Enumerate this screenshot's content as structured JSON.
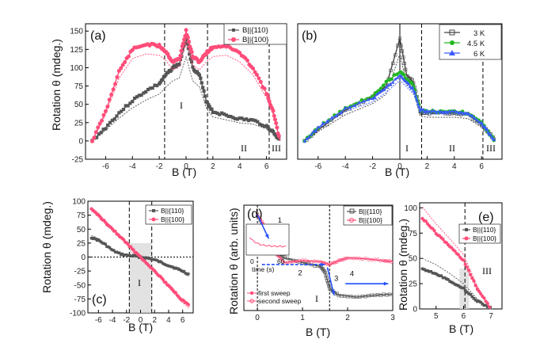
{
  "figure": {
    "panels": [
      {
        "id": "a",
        "label": "(a)",
        "xlabel": "B (T)",
        "ylabel": "Rotation θ (mdeg.)",
        "xlim": [
          -7.5,
          7.5
        ],
        "ylim": [
          -25,
          160
        ],
        "xticks": [
          -6,
          -4,
          -2,
          0,
          2,
          4,
          6
        ],
        "yticks": [
          -25,
          0,
          25,
          50,
          75,
          100,
          125,
          150
        ],
        "legend": [
          "B||{110}",
          "B||{100}"
        ],
        "regions": [
          "I",
          "II",
          "III"
        ],
        "vlines": [
          -1.6,
          1.6,
          6.2
        ]
      },
      {
        "id": "b",
        "label": "(b)",
        "xlabel": "B (T)",
        "ylabel": "",
        "xlim": [
          -7.5,
          7.5
        ],
        "ylim": [
          -25,
          160
        ],
        "xticks": [
          -6,
          -4,
          -2,
          0,
          2,
          4,
          6
        ],
        "legend": [
          "3 K",
          "4.5 K",
          "6 K"
        ],
        "regions": [
          "I",
          "II",
          "III"
        ],
        "vlines": [
          0,
          1.6,
          6.1
        ]
      },
      {
        "id": "c",
        "label": "(c)",
        "xlabel": "B (T)",
        "ylabel": "Rotation θ (mdeg.)",
        "xlim": [
          -7.5,
          7.5
        ],
        "ylim": [
          -100,
          100
        ],
        "xticks": [
          -6,
          -4,
          -2,
          0,
          2,
          4,
          6
        ],
        "yticks": [
          -100,
          -75,
          -50,
          -25,
          0,
          25,
          50,
          75,
          100
        ],
        "legend": [
          "B||{110}",
          "B||{100}"
        ],
        "regions": [
          "I"
        ]
      },
      {
        "id": "d",
        "label": "(d)",
        "xlabel": "B (T)",
        "ylabel": "Rotation θ (arb. units)",
        "xlim": [
          -0.3,
          3
        ],
        "xticks": [
          0,
          1,
          2,
          3
        ],
        "legend": [
          "B||{110}",
          "B||{100}"
        ],
        "legend2": [
          "first sweep",
          "second sweep"
        ],
        "steps": [
          "1",
          "2",
          "3",
          "4"
        ],
        "regions": [
          "I"
        ],
        "inset": {
          "xlabel": "time (s)",
          "xticks": [
            "0",
            "60"
          ]
        }
      },
      {
        "id": "e",
        "label": "(e)",
        "xlabel": "B (T)",
        "ylabel": "Rotation θ (mdeg.)",
        "xlim": [
          4.4,
          7.4
        ],
        "ylim": [
          0,
          105
        ],
        "xticks": [
          5,
          6,
          7
        ],
        "yticks": [
          0,
          25,
          50,
          75,
          100
        ],
        "legend": [
          "B||{110}",
          "B||{100}"
        ],
        "regions": [
          "III"
        ]
      }
    ]
  },
  "chart_data": [
    {
      "type": "line",
      "panel": "a",
      "title": "",
      "xlabel": "B (T)",
      "ylabel": "Rotation θ (mdeg.)",
      "series": [
        {
          "name": "B||{110}",
          "color": "#555555",
          "x": [
            -7,
            -6,
            -5,
            -4,
            -3,
            -2,
            -1.5,
            -1,
            -0.5,
            0,
            0.5,
            1,
            1.5,
            2,
            3,
            4,
            5,
            6,
            6.5,
            7
          ],
          "y": [
            0,
            18,
            38,
            55,
            68,
            78,
            90,
            100,
            105,
            140,
            100,
            90,
            55,
            40,
            35,
            30,
            28,
            20,
            12,
            0
          ]
        },
        {
          "name": "B||{100}",
          "color": "#ff4d7a",
          "x": [
            -7,
            -6,
            -5,
            -4,
            -3,
            -2,
            -1.5,
            -1,
            -0.5,
            0,
            0.5,
            1,
            1.5,
            2,
            3,
            4,
            5,
            6,
            6.5,
            7
          ],
          "y": [
            0,
            40,
            95,
            125,
            132,
            130,
            122,
            108,
            112,
            150,
            115,
            108,
            120,
            128,
            130,
            120,
            100,
            65,
            40,
            0
          ]
        }
      ],
      "regions": [
        "I",
        "II",
        "III"
      ]
    },
    {
      "type": "line",
      "panel": "b",
      "xlabel": "B (T)",
      "series": [
        {
          "name": "3 K",
          "color": "#444444",
          "x": [
            -7,
            -6,
            -4,
            -2,
            -1,
            0,
            0.5,
            1,
            1.5,
            2,
            3,
            4,
            5,
            6,
            6.5,
            7
          ],
          "y": [
            0,
            15,
            42,
            60,
            75,
            140,
            90,
            80,
            40,
            38,
            38,
            38,
            36,
            22,
            12,
            0
          ]
        },
        {
          "name": "4.5 K",
          "color": "#22b822",
          "x": [
            -7,
            -6,
            -4,
            -2,
            -1,
            0,
            0.5,
            1,
            1.5,
            2,
            3,
            4,
            5,
            6,
            6.5,
            7
          ],
          "y": [
            0,
            18,
            45,
            62,
            80,
            95,
            85,
            75,
            42,
            40,
            40,
            40,
            38,
            24,
            12,
            0
          ]
        },
        {
          "name": "6 K",
          "color": "#3b5bff",
          "x": [
            -7,
            -6,
            -4,
            -2,
            -1,
            0,
            0.5,
            1,
            1.5,
            2,
            3,
            4,
            5,
            6,
            6.5,
            7
          ],
          "y": [
            0,
            18,
            44,
            58,
            72,
            90,
            80,
            70,
            42,
            40,
            40,
            40,
            38,
            24,
            12,
            0
          ]
        }
      ]
    },
    {
      "type": "line",
      "panel": "c",
      "xlabel": "B (T)",
      "ylabel": "Rotation θ (mdeg.)",
      "series": [
        {
          "name": "B||{110}",
          "color": "#555555",
          "x": [
            -7,
            -6,
            -5,
            -4,
            -3,
            -2,
            -1,
            0,
            1,
            2,
            3,
            4,
            5,
            6,
            7
          ],
          "y": [
            35,
            30,
            22,
            12,
            6,
            3,
            2,
            0,
            -2,
            -5,
            -10,
            -15,
            -20,
            -25,
            -32
          ]
        },
        {
          "name": "B||{100}",
          "color": "#ff4d7a",
          "x": [
            -7,
            -6,
            -5,
            -4,
            -3,
            -2,
            -1,
            0,
            1,
            2,
            3,
            4,
            5,
            6,
            7
          ],
          "y": [
            85,
            75,
            62,
            50,
            38,
            25,
            12,
            0,
            -12,
            -25,
            -38,
            -52,
            -65,
            -78,
            -88
          ]
        }
      ],
      "regions": [
        "I"
      ]
    },
    {
      "type": "line",
      "panel": "d",
      "xlabel": "B (T)",
      "ylabel": "Rotation θ (arb. units)",
      "series": [
        {
          "name": "B||{110}",
          "color": "#555555",
          "x": [
            0,
            0.2,
            0.4,
            0.6,
            1,
            1.4,
            1.5,
            1.6,
            1.8,
            2.2,
            2.6,
            3
          ],
          "y": [
            10,
            8,
            6,
            5.5,
            5,
            4.6,
            4,
            2.3,
            1.6,
            1.4,
            1.6,
            1.7
          ]
        },
        {
          "name": "B||{100}",
          "color": "#ff4d7a",
          "x": [
            0,
            0.2,
            0.4,
            0.6,
            1,
            1.4,
            1.6,
            1.8,
            2,
            2.4,
            2.8,
            3
          ],
          "y": [
            10,
            8.5,
            6,
            5,
            5.2,
            5.1,
            4.8,
            5.2,
            5.5,
            5.4,
            5.2,
            5.1
          ]
        }
      ],
      "steps": [
        "1",
        "2",
        "3",
        "4"
      ]
    },
    {
      "type": "line",
      "panel": "e",
      "xlabel": "B (T)",
      "ylabel": "Rotation θ (mdeg.)",
      "series": [
        {
          "name": "B||{110}",
          "color": "#555555",
          "x": [
            4.5,
            5,
            5.5,
            6,
            6.5,
            7
          ],
          "y": [
            40,
            35,
            28,
            20,
            8,
            0
          ]
        },
        {
          "name": "B||{100}",
          "color": "#ff4d7a",
          "x": [
            4.5,
            5,
            5.5,
            6,
            6.5,
            7
          ],
          "y": [
            90,
            75,
            62,
            48,
            20,
            0
          ]
        }
      ],
      "regions": [
        "III"
      ]
    }
  ]
}
